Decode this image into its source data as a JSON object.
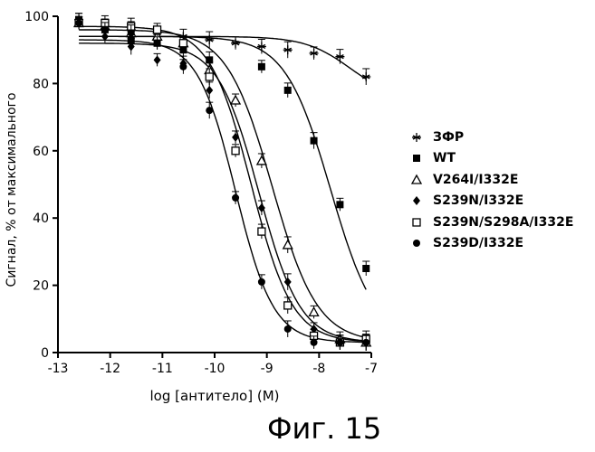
{
  "caption": "Фиг. 15",
  "chart_data": {
    "type": "scatter",
    "title": "",
    "xlabel": "log [антитело] (M)",
    "ylabel": "Сигнал, % от максимального",
    "xlim": [
      -13,
      -7
    ],
    "ylim": [
      0,
      100
    ],
    "xticks": [
      -13,
      -12,
      -11,
      -10,
      -9,
      -8,
      -7
    ],
    "yticks": [
      0,
      20,
      40,
      60,
      80,
      100
    ],
    "xtick_labels": [
      "-13",
      "-12",
      "-11",
      "-10",
      "-9",
      "-8",
      "-7"
    ],
    "ytick_labels": [
      "0",
      "20",
      "40",
      "60",
      "80",
      "100"
    ],
    "legend_position": "right",
    "series": [
      {
        "name": "ЗФР",
        "marker": "asterisk",
        "x": [
          -12.6,
          -12.1,
          -11.6,
          -11.1,
          -10.6,
          -10.1,
          -9.6,
          -9.1,
          -8.6,
          -8.1,
          -7.6,
          -7.1
        ],
        "y": [
          99,
          97,
          96,
          95,
          94,
          93,
          92,
          91,
          90,
          89,
          88,
          82
        ],
        "fit": {
          "top": 94,
          "bottom": 75,
          "logEC50": -7.4,
          "hill": 1.0
        }
      },
      {
        "name": "WT",
        "marker": "filled-square",
        "x": [
          -12.6,
          -12.1,
          -11.6,
          -11.1,
          -10.6,
          -10.1,
          -9.1,
          -8.6,
          -8.1,
          -7.6,
          -7.1
        ],
        "y": [
          99,
          96,
          93,
          92,
          90,
          87,
          85,
          78,
          63,
          44,
          25
        ],
        "fit": {
          "top": 94,
          "bottom": 3,
          "logEC50": -7.78,
          "hill": 1.0
        }
      },
      {
        "name": "V264I/I332E",
        "marker": "open-triangle",
        "x": [
          -12.6,
          -12.1,
          -11.6,
          -11.1,
          -10.6,
          -10.1,
          -9.6,
          -9.1,
          -8.6,
          -8.1,
          -7.6,
          -7.1
        ],
        "y": [
          98,
          97,
          95,
          94,
          92,
          84,
          75,
          57,
          32,
          12,
          4,
          3
        ],
        "fit": {
          "top": 96,
          "bottom": 3,
          "logEC50": -8.9,
          "hill": 1.0
        }
      },
      {
        "name": "S239N/I332E",
        "marker": "filled-diamond",
        "x": [
          -12.6,
          -12.1,
          -11.6,
          -11.1,
          -10.6,
          -10.1,
          -9.6,
          -9.1,
          -8.6,
          -8.1,
          -7.6,
          -7.1
        ],
        "y": [
          98,
          94,
          91,
          87,
          86,
          78,
          64,
          43,
          21,
          7,
          3,
          3
        ],
        "fit": {
          "top": 92,
          "bottom": 3,
          "logEC50": -9.15,
          "hill": 1.1
        }
      },
      {
        "name": "S239N/S298A/I332E",
        "marker": "open-square",
        "x": [
          -12.6,
          -12.1,
          -11.6,
          -11.1,
          -10.6,
          -10.1,
          -9.6,
          -9.1,
          -8.6,
          -8.1,
          -7.6,
          -7.1
        ],
        "y": [
          98,
          98,
          97,
          96,
          92,
          82,
          60,
          36,
          14,
          5,
          3,
          4
        ],
        "fit": {
          "top": 97,
          "bottom": 3,
          "logEC50": -9.3,
          "hill": 1.1
        }
      },
      {
        "name": "S239D/I332E",
        "marker": "filled-circle",
        "x": [
          -12.6,
          -12.1,
          -11.6,
          -11.1,
          -10.6,
          -10.1,
          -9.6,
          -9.1,
          -8.6,
          -8.1,
          -7.6,
          -7.1
        ],
        "y": [
          98,
          96,
          95,
          92,
          85,
          72,
          46,
          21,
          7,
          3,
          3,
          3
        ],
        "fit": {
          "top": 93,
          "bottom": 3,
          "logEC50": -9.6,
          "hill": 1.2
        }
      }
    ]
  }
}
